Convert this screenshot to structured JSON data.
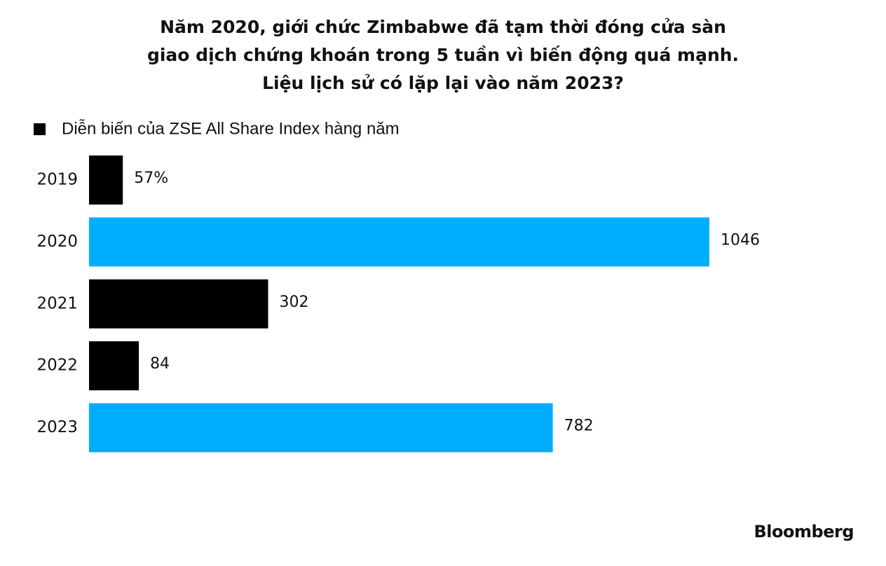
{
  "chart_data": {
    "type": "bar",
    "orientation": "horizontal",
    "title": [
      "Năm 2020, giới chức Zimbabwe đã tạm thời đóng cửa sàn",
      "giao dịch chứng khoán trong 5 tuần vì biến động quá mạnh.",
      "Liệu lịch sử có lặp lại vào năm 2023?"
    ],
    "categories": [
      "2019",
      "2020",
      "2021",
      "2022",
      "2023"
    ],
    "series": [
      {
        "name": "Diễn biến của ZSE All Share Index hàng năm",
        "color": "#000000",
        "values": [
          57,
          1046,
          302,
          84,
          782
        ],
        "value_labels": [
          "57%",
          "1046",
          "302",
          "84",
          "782"
        ],
        "bar_colors": [
          "#000000",
          "#00aeff",
          "#000000",
          "#000000",
          "#00aeff"
        ]
      }
    ],
    "source": "Bloomberg"
  }
}
